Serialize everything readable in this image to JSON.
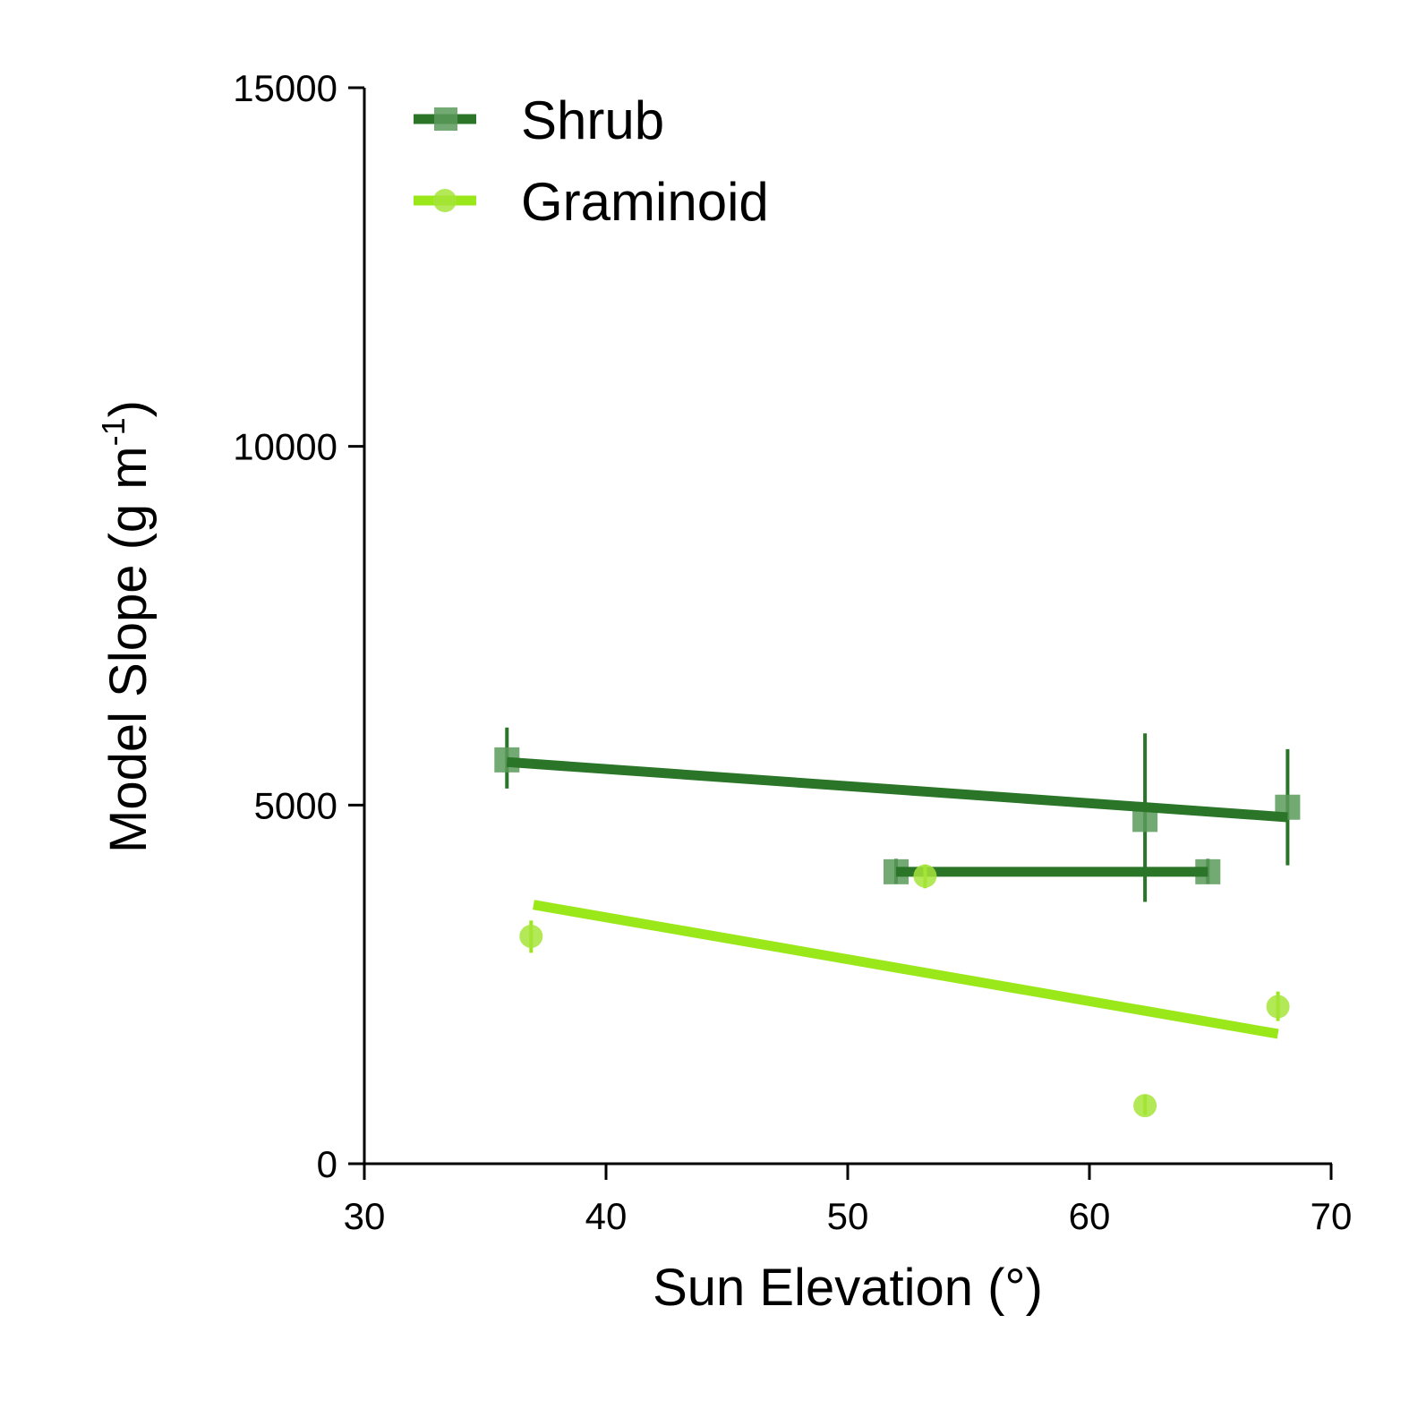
{
  "chart_data": {
    "type": "scatter",
    "xlabel": "Sun Elevation (°)",
    "ylabel_main": "Model Slope (g m",
    "ylabel_sup": "-1",
    "ylabel_close": ")",
    "xlim": [
      30,
      70
    ],
    "ylim": [
      0,
      15000
    ],
    "xticks": [
      30,
      40,
      50,
      60,
      70
    ],
    "xtick_labels": [
      "30",
      "40",
      "50",
      "60",
      "70"
    ],
    "yticks": [
      0,
      5000,
      10000,
      15000
    ],
    "ytick_labels": [
      "0",
      "5000",
      "10000",
      "15000"
    ],
    "legend_position": "top-left",
    "series": [
      {
        "name": "Shrub",
        "marker": "square",
        "color": "#2a7528",
        "marker_color": "#5a9a5a",
        "points": [
          {
            "x": 35.9,
            "y": 5630,
            "ylo": 5230,
            "yhi": 6080
          },
          {
            "x": 62.3,
            "y": 4800,
            "ylo": 3650,
            "yhi": 6000
          },
          {
            "x": 68.2,
            "y": 4970,
            "ylo": 4160,
            "yhi": 5780
          },
          {
            "x": 52.0,
            "y": 4070,
            "ylo": 3900,
            "yhi": 4250
          },
          {
            "x": 64.9,
            "y": 4070,
            "ylo": 3900,
            "yhi": 4250
          }
        ],
        "fit_lines": [
          {
            "x": [
              35.9,
              68.2
            ],
            "y": [
              5600,
              4830
            ]
          },
          {
            "x": [
              52.0,
              64.9
            ],
            "y": [
              4070,
              4070
            ]
          }
        ]
      },
      {
        "name": "Graminoid",
        "marker": "circle",
        "color": "#9be81a",
        "marker_color": "#a6e43a",
        "points": [
          {
            "x": 36.9,
            "y": 3170,
            "ylo": 2940,
            "yhi": 3390
          },
          {
            "x": 53.2,
            "y": 4010,
            "ylo": 3840,
            "yhi": 4170
          },
          {
            "x": 67.8,
            "y": 2190,
            "ylo": 1990,
            "yhi": 2400
          },
          {
            "x": 62.3,
            "y": 810,
            "ylo": 680,
            "yhi": 960
          }
        ],
        "fit_lines": [
          {
            "x": [
              37.0,
              67.8
            ],
            "y": [
              3610,
              1810
            ]
          }
        ]
      }
    ]
  }
}
